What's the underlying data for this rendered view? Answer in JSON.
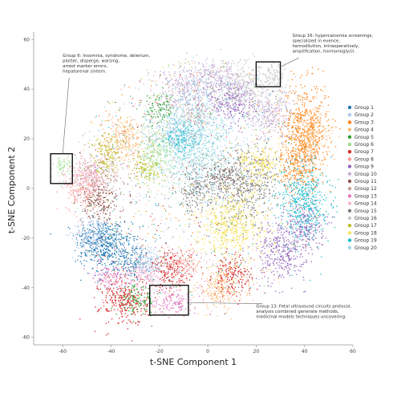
{
  "chart_data": {
    "type": "scatter",
    "xlabel": "t-SNE Component 1",
    "ylabel": "t-SNE Component 2",
    "xlim": [
      -72,
      60
    ],
    "ylim": [
      -63,
      63
    ],
    "xticks": [
      -60,
      -40,
      -20,
      0,
      20,
      40,
      60
    ],
    "yticks": [
      -60,
      -40,
      -20,
      0,
      20,
      40,
      60
    ],
    "legend_position": "right",
    "series": [
      {
        "name": "Group 1",
        "color": "#1f77b4",
        "clusters": [
          [
            -45,
            -20,
            5,
            4
          ],
          [
            -40,
            -25,
            6,
            5
          ],
          [
            -30,
            -30,
            3,
            3
          ]
        ]
      },
      {
        "name": "Group 2",
        "color": "#aec7e8",
        "clusters": [
          [
            -25,
            -30,
            4,
            4
          ],
          [
            -15,
            22,
            4,
            4
          ],
          [
            -48,
            -18,
            4,
            4
          ]
        ]
      },
      {
        "name": "Group 3",
        "color": "#ff7f0e",
        "clusters": [
          [
            40,
            25,
            5,
            9
          ],
          [
            38,
            10,
            4,
            6
          ]
        ]
      },
      {
        "name": "Group 4",
        "color": "#ffbb78",
        "clusters": [
          [
            -35,
            20,
            5,
            5
          ],
          [
            42,
            20,
            4,
            6
          ],
          [
            5,
            -40,
            5,
            4
          ]
        ]
      },
      {
        "name": "Group 5",
        "color": "#2ca02c",
        "clusters": [
          [
            -30,
            -45,
            4,
            3
          ],
          [
            -20,
            32,
            3,
            3
          ]
        ]
      },
      {
        "name": "Group 6",
        "color": "#98df8a",
        "clusters": [
          [
            -22,
            15,
            4,
            5
          ],
          [
            -60,
            9,
            2,
            2.5
          ]
        ]
      },
      {
        "name": "Group 7",
        "color": "#d62728",
        "clusters": [
          [
            -35,
            -45,
            5,
            5
          ],
          [
            -15,
            -33,
            4,
            4
          ],
          [
            10,
            -35,
            4,
            4
          ]
        ]
      },
      {
        "name": "Group 8",
        "color": "#ff9896",
        "clusters": [
          [
            -52,
            0,
            4,
            4
          ],
          [
            -10,
            -30,
            4,
            3
          ]
        ]
      },
      {
        "name": "Group 9",
        "color": "#9467bd",
        "clusters": [
          [
            30,
            -25,
            5,
            6
          ],
          [
            10,
            35,
            5,
            5
          ],
          [
            40,
            -15,
            4,
            5
          ]
        ]
      },
      {
        "name": "Group 10",
        "color": "#c5b0d5",
        "clusters": [
          [
            -10,
            40,
            6,
            5
          ],
          [
            25,
            30,
            5,
            5
          ],
          [
            5,
            45,
            6,
            4
          ]
        ]
      },
      {
        "name": "Group 11",
        "color": "#8c564b",
        "clusters": [
          [
            -45,
            -5,
            4,
            4
          ],
          [
            5,
            5,
            3,
            3
          ]
        ]
      },
      {
        "name": "Group 12",
        "color": "#c49c94",
        "clusters": [
          [
            -45,
            5,
            5,
            4
          ],
          [
            -5,
            30,
            3,
            3
          ]
        ]
      },
      {
        "name": "Group 13",
        "color": "#e377c2",
        "clusters": [
          [
            -15,
            -45,
            4,
            3
          ],
          [
            -40,
            -35,
            4,
            3
          ]
        ]
      },
      {
        "name": "Group 14",
        "color": "#f7b6d2",
        "clusters": [
          [
            -50,
            5,
            4,
            4
          ],
          [
            -25,
            -35,
            4,
            3
          ]
        ]
      },
      {
        "name": "Group 15",
        "color": "#7f7f7f",
        "clusters": [
          [
            15,
            2,
            7,
            7
          ],
          [
            -5,
            0,
            4,
            5
          ]
        ]
      },
      {
        "name": "Group 16",
        "color": "#c7c7c7",
        "clusters": [
          [
            27,
            45,
            4,
            3
          ],
          [
            15,
            40,
            5,
            4
          ]
        ]
      },
      {
        "name": "Group 17",
        "color": "#bcbd22",
        "clusters": [
          [
            -42,
            15,
            3,
            4
          ],
          [
            -25,
            8,
            3,
            3
          ]
        ]
      },
      {
        "name": "Group 18",
        "color": "#f5e35a",
        "clusters": [
          [
            10,
            -15,
            7,
            7
          ],
          [
            22,
            10,
            5,
            4
          ]
        ]
      },
      {
        "name": "Group 19",
        "color": "#17becf",
        "clusters": [
          [
            40,
            -5,
            5,
            8
          ],
          [
            -10,
            20,
            4,
            4
          ]
        ]
      },
      {
        "name": "Group 20",
        "color": "#9edae5",
        "clusters": [
          [
            -5,
            20,
            9,
            11
          ]
        ]
      }
    ],
    "highlight_boxes": [
      {
        "x0": -65,
        "x1": -56,
        "y0": 2,
        "y1": 14
      },
      {
        "x0": 20,
        "x1": 30,
        "y0": 41,
        "y1": 51
      },
      {
        "x0": -24,
        "x1": -8,
        "y0": -51,
        "y1": -39
      }
    ],
    "annotations": [
      {
        "lines": [
          "Group 6: Insomnia, syndrome, delerium,",
          "plotter, disperge, warsing,",
          "arrest marker errors,",
          "hepatorenal sintern."
        ],
        "text_x": -60,
        "text_y": 53,
        "point_x": -60,
        "point_y": 14
      },
      {
        "lines": [
          "Group 16: hypercalcemia screenings,",
          "specialized in evence,",
          "hemodilution, intraoperatively,",
          "amplification, hormonoglycil."
        ],
        "text_x": 35,
        "text_y": 61,
        "point_x": 30,
        "point_y": 49
      },
      {
        "lines": [
          "Group 13: Fetal ultrasound circuits protocol,",
          "analysis combined generate methods,",
          "medicinal models techniques uncovering."
        ],
        "text_x": 20,
        "text_y": -48,
        "point_x": -8,
        "point_y": -46
      }
    ]
  }
}
